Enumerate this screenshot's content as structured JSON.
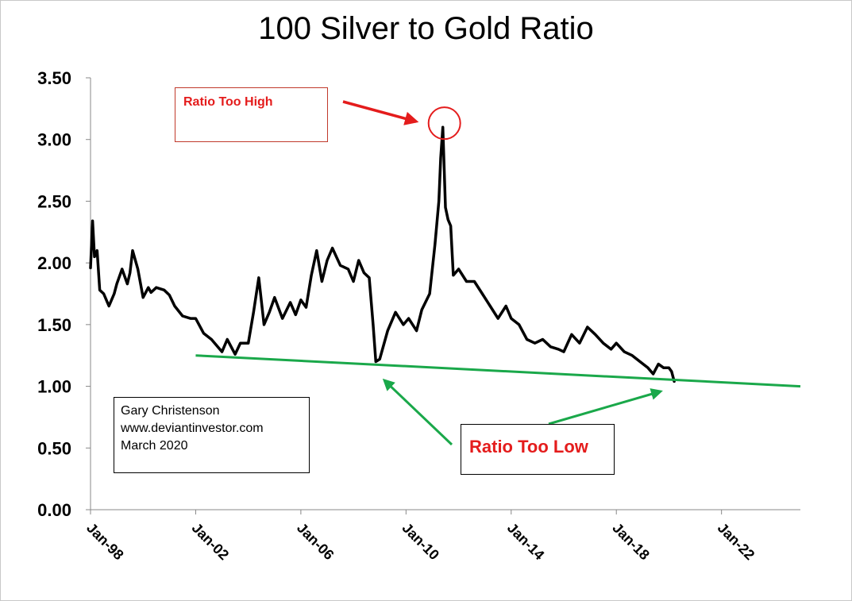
{
  "chart_data": {
    "type": "line",
    "title": "100 Silver to Gold Ratio",
    "xlabel": "",
    "ylabel": "",
    "ylim": [
      0,
      3.5
    ],
    "yticks": [
      "0.00",
      "0.50",
      "1.00",
      "1.50",
      "2.00",
      "2.50",
      "3.00",
      "3.50"
    ],
    "xlim": [
      1998.0,
      2025.0
    ],
    "xticks": [
      {
        "x": 1998.0,
        "label": "Jan-98"
      },
      {
        "x": 2002.0,
        "label": "Jan-02"
      },
      {
        "x": 2006.0,
        "label": "Jan-06"
      },
      {
        "x": 2010.0,
        "label": "Jan-10"
      },
      {
        "x": 2014.0,
        "label": "Jan-14"
      },
      {
        "x": 2018.0,
        "label": "Jan-18"
      },
      {
        "x": 2022.0,
        "label": "Jan-22"
      }
    ],
    "grid": false,
    "series": [
      {
        "color": "#000000",
        "x": [
          1998.0,
          1998.08,
          1998.15,
          1998.25,
          1998.35,
          1998.5,
          1998.7,
          1998.9,
          1999.0,
          1999.2,
          1999.4,
          1999.5,
          1999.6,
          1999.8,
          2000.0,
          2000.2,
          2000.3,
          2000.5,
          2000.8,
          2001.0,
          2001.2,
          2001.5,
          2001.8,
          2002.0,
          2002.3,
          2002.6,
          2003.0,
          2003.2,
          2003.5,
          2003.7,
          2004.0,
          2004.2,
          2004.4,
          2004.6,
          2004.8,
          2005.0,
          2005.3,
          2005.6,
          2005.8,
          2006.0,
          2006.2,
          2006.4,
          2006.6,
          2006.8,
          2007.0,
          2007.2,
          2007.5,
          2007.8,
          2008.0,
          2008.2,
          2008.4,
          2008.6,
          2008.75,
          2008.85,
          2009.0,
          2009.3,
          2009.6,
          2009.9,
          2010.1,
          2010.4,
          2010.6,
          2010.9,
          2011.1,
          2011.25,
          2011.32,
          2011.4,
          2011.5,
          2011.6,
          2011.7,
          2011.8,
          2012.0,
          2012.3,
          2012.6,
          2012.9,
          2013.2,
          2013.5,
          2013.8,
          2014.0,
          2014.3,
          2014.6,
          2014.9,
          2015.2,
          2015.5,
          2015.8,
          2016.0,
          2016.3,
          2016.6,
          2016.9,
          2017.2,
          2017.5,
          2017.8,
          2018.0,
          2018.3,
          2018.6,
          2018.9,
          2019.2,
          2019.4,
          2019.6,
          2019.8,
          2020.0,
          2020.1,
          2020.2
        ],
        "y": [
          1.96,
          2.34,
          2.05,
          2.1,
          1.78,
          1.75,
          1.65,
          1.75,
          1.83,
          1.95,
          1.83,
          1.92,
          2.1,
          1.95,
          1.72,
          1.8,
          1.76,
          1.8,
          1.78,
          1.74,
          1.65,
          1.57,
          1.55,
          1.55,
          1.43,
          1.38,
          1.28,
          1.38,
          1.26,
          1.35,
          1.35,
          1.6,
          1.88,
          1.5,
          1.6,
          1.72,
          1.55,
          1.68,
          1.58,
          1.7,
          1.64,
          1.9,
          2.1,
          1.85,
          2.02,
          2.12,
          1.98,
          1.95,
          1.85,
          2.02,
          1.92,
          1.88,
          1.5,
          1.2,
          1.22,
          1.45,
          1.6,
          1.5,
          1.55,
          1.45,
          1.62,
          1.75,
          2.15,
          2.5,
          2.85,
          3.1,
          2.45,
          2.35,
          2.3,
          1.9,
          1.95,
          1.85,
          1.85,
          1.75,
          1.65,
          1.55,
          1.65,
          1.55,
          1.5,
          1.38,
          1.35,
          1.38,
          1.32,
          1.3,
          1.28,
          1.42,
          1.35,
          1.48,
          1.42,
          1.35,
          1.3,
          1.35,
          1.28,
          1.25,
          1.2,
          1.15,
          1.1,
          1.18,
          1.15,
          1.15,
          1.12,
          1.04
        ]
      }
    ],
    "trendline": {
      "color": "#1aa84a",
      "x": [
        2002.0,
        2025.0
      ],
      "y": [
        1.25,
        1.0
      ]
    },
    "annotations": {
      "high_label": "Ratio Too High",
      "low_label": "Ratio Too Low",
      "credit": [
        "Gary Christenson",
        "www.deviantinvestor.com",
        "March 2020"
      ]
    },
    "colors": {
      "annotation_red": "#e41c1c",
      "trend_green": "#1aa84a",
      "axis": "#888888"
    }
  }
}
